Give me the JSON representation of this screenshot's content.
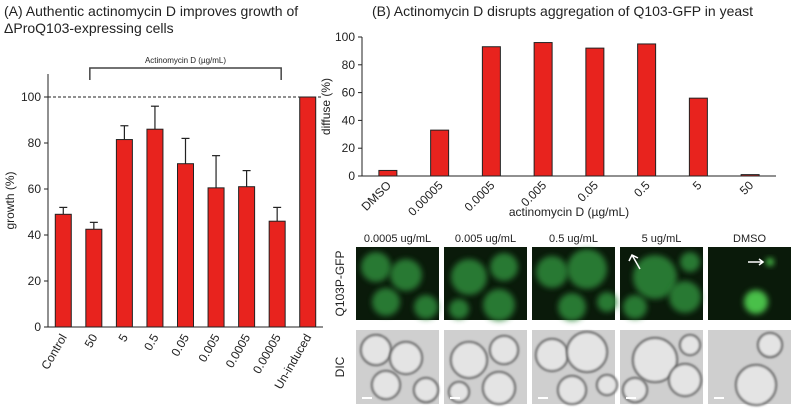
{
  "chart_data": [
    {
      "type": "bar",
      "title": "(A) Authentic actinomycin D improves growth of ΔProQ103-expressing cells",
      "y_label": "growth (%)",
      "annotation": "Actinomycin D (µg/mL)",
      "categories": [
        "Control",
        "50",
        "5",
        "0.5",
        "0.05",
        "0.005",
        "0.0005",
        "0.00005",
        "Un-induced"
      ],
      "values": [
        49,
        42.5,
        81.5,
        86,
        71,
        60.5,
        61,
        46,
        100
      ],
      "errors": [
        3,
        3,
        6,
        10,
        11,
        14,
        7,
        6,
        null
      ],
      "reference_line": 100,
      "color": "#e8231e",
      "ylim": [
        0,
        110
      ],
      "yticks": [
        0,
        20,
        40,
        60,
        80,
        100
      ],
      "grid": false
    },
    {
      "type": "bar",
      "title": "(B) Actinomycin D disrupts aggregation of Q103-GFP in yeast",
      "y_label": "diffuse (%)",
      "x_label": "actinomycin D (µg/mL)",
      "categories": [
        "DMSO",
        "0.00005",
        "0.0005",
        "0.005",
        "0.05",
        "0.5",
        "5",
        "50"
      ],
      "values": [
        4,
        33,
        93,
        96,
        92,
        95,
        56,
        1
      ],
      "color": "#e8231e",
      "ylim": [
        0,
        100
      ],
      "yticks": [
        0,
        20,
        40,
        60,
        80,
        100
      ],
      "grid": false
    }
  ],
  "micrographs": {
    "row_labels": [
      "Q103P-GFP",
      "DIC"
    ],
    "column_labels": [
      "0.0005 ug/mL",
      "0.005 ug/mL",
      "0.5 ug/mL",
      "5 ug/mL",
      "DMSO"
    ]
  }
}
